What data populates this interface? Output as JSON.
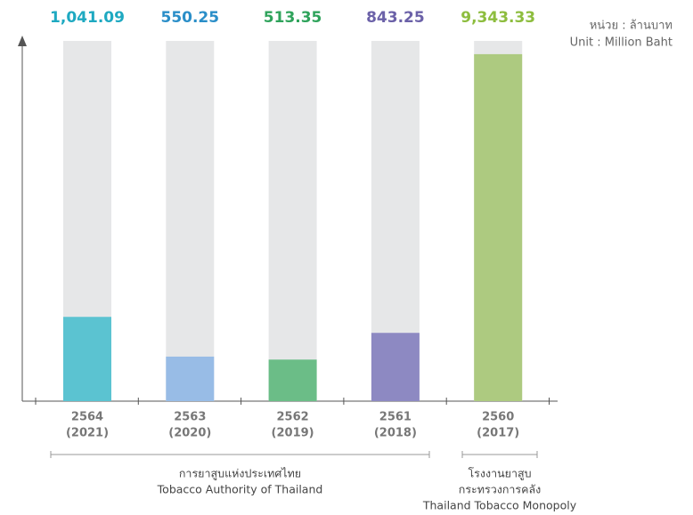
{
  "chart_data": {
    "type": "bar",
    "unit_label": [
      "หน่วย : ล้านบาท",
      "Unit : Million Baht"
    ],
    "categories": [
      [
        "2564",
        "(2021)"
      ],
      [
        "2563",
        "(2020)"
      ],
      [
        "2562",
        "(2019)"
      ],
      [
        "2561",
        "(2018)"
      ],
      [
        "2560",
        "(2017)"
      ]
    ],
    "values": [
      1041.09,
      550.25,
      513.35,
      843.25,
      9343.33
    ],
    "value_labels": [
      "1,041.09",
      "550.25",
      "513.35",
      "843.25",
      "9,343.33"
    ],
    "colors": [
      "#5bc3d1",
      "#98bce6",
      "#6bbd87",
      "#8d89c2",
      "#adca80"
    ],
    "label_colors": [
      "#1ea9c1",
      "#2a8ec8",
      "#2fa35b",
      "#6b61a8",
      "#8dbd3e"
    ],
    "axes": [
      "y",
      "y",
      "y",
      "y",
      "y2"
    ],
    "ylim": [
      0,
      4450
    ],
    "y2lim": [
      0,
      9700
    ],
    "groups": [
      [
        "การยาสูบแห่งประเทศไทย",
        "Tobacco Authority of Thailand"
      ],
      [
        "โรงงานยาสูบ",
        "กระทรวงการคลัง",
        "Thailand Tobacco Monopoly"
      ]
    ]
  }
}
